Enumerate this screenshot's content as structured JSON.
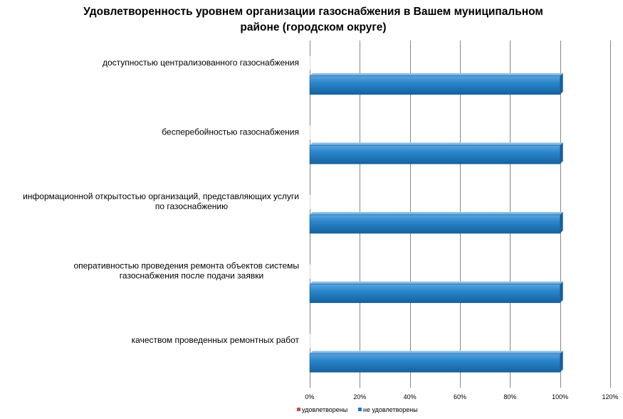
{
  "chart_data": {
    "type": "bar",
    "orientation": "horizontal",
    "title": "Удовлетворенность уровнем организации газоснабжения в Вашем муниципальном районе (городском округе)",
    "title_lines": [
      "Удовлетворенность уровнем организации газоснабжения в Вашем муниципальном",
      "районе (городском округе)"
    ],
    "categories": [
      "доступностью централизованного газоснабжения",
      "бесперебойностью газоснабжения",
      "информационной открытостью организаций, представляющих услуги по газоснабжению",
      "оперативностью проведения ремонта объектов системы газоснабжения после подачи заявки",
      "качеством проведенных ремонтных работ"
    ],
    "category_label_lines": [
      [
        "доступностью централизованного газоснабжения"
      ],
      [
        "бесперебойностью газоснабжения"
      ],
      [
        "информационной открытостью организаций, представляющих услуги",
        "по газоснабжению"
      ],
      [
        "оперативностью проведения ремонта объектов системы",
        "газоснабжения после подачи заявки"
      ],
      [
        "качеством проведенных ремонтных работ"
      ]
    ],
    "series": [
      {
        "name": "удовлетворены",
        "values": [
          0,
          0,
          0,
          0,
          0
        ],
        "color": "#C0504D"
      },
      {
        "name": "не удовлетворены",
        "values": [
          100,
          100,
          100,
          100,
          100
        ],
        "color": "#1F77C4"
      }
    ],
    "xlim": [
      0,
      120
    ],
    "xticks": [
      0,
      20,
      40,
      60,
      80,
      100,
      120
    ],
    "xtick_labels": [
      "0%",
      "20%",
      "40%",
      "60%",
      "80%",
      "100%",
      "120%"
    ],
    "grid": true,
    "legend_position": "bottom-left"
  }
}
